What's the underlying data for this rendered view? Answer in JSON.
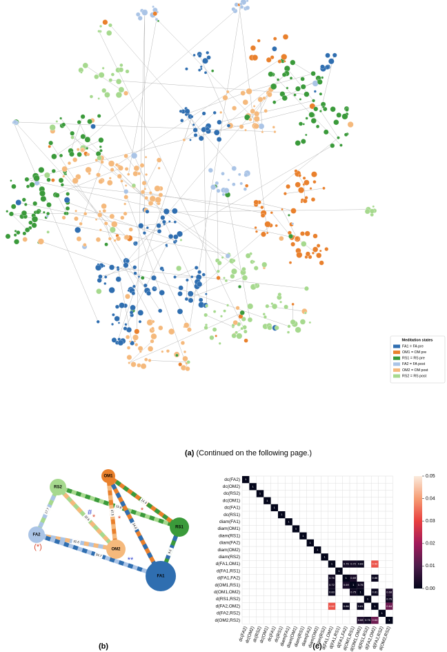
{
  "panel_a": {
    "caption_label": "(a)",
    "caption_text": "(Continued on the following page.)",
    "legend": {
      "title": "Meditation states",
      "entries": [
        {
          "label": "FA1 = FA pre",
          "color": "#2f6eb0"
        },
        {
          "label": "OM1 = OM pre",
          "color": "#e9802c"
        },
        {
          "label": "RS1 = RS pre",
          "color": "#3a9a3a"
        },
        {
          "label": "FA2 = FA post",
          "color": "#aac4e6"
        },
        {
          "label": "OM2 = OM post",
          "color": "#f5b97c"
        },
        {
          "label": "RS2 = RS post",
          "color": "#a6d98e"
        }
      ]
    }
  },
  "panel_b": {
    "caption": "(b)",
    "nodes": [
      "OM1",
      "RS2",
      "RS1",
      "FA2",
      "OM2",
      "FA1"
    ],
    "edges": [
      {
        "from": 1,
        "to": 3,
        "label": "17.7"
      },
      {
        "from": 3,
        "to": 4,
        "label": "32.6"
      },
      {
        "from": 3,
        "to": 5,
        "label": "34.7"
      },
      {
        "from": 1,
        "to": 4,
        "label": "32.6"
      },
      {
        "from": 1,
        "to": 2,
        "label": "15.8"
      },
      {
        "from": 0,
        "to": 4,
        "label": "37.5"
      },
      {
        "from": 0,
        "to": 5,
        "label": "34.8"
      },
      {
        "from": 0,
        "to": 2,
        "label": "14.3"
      },
      {
        "from": 2,
        "to": 5,
        "label": "9.6"
      }
    ],
    "annotations": [
      {
        "text": "*",
        "color": "#d9472b"
      },
      {
        "text": "#",
        "color": "#2a3fd0"
      },
      {
        "text": "*",
        "color": "#d9472b"
      },
      {
        "text": "*",
        "color": "#d9472b"
      },
      {
        "text": "(*)",
        "color": "#d9472b"
      },
      {
        "text": "**",
        "color": "#2a3fd0"
      }
    ]
  },
  "panel_c": {
    "caption": "(c)",
    "labels": [
      "dc(FA2)",
      "dc(OM2)",
      "dc(RS2)",
      "dc(OM1)",
      "dc(FA1)",
      "dc(RS1)",
      "diam(FA1)",
      "diam(OM1)",
      "diam(RS1)",
      "diam(FA2)",
      "diam(OM2)",
      "diam(RS2)",
      "d(FA1,OM1)",
      "d(FA1,RS1)",
      "d(FA1,FA2)",
      "d(OM1,RS1)",
      "d(OM1,OM2)",
      "d(RS1,RS2)",
      "d(FA2,OM2)",
      "d(FA2,RS2)",
      "d(OM2,RS2)"
    ],
    "cells": [
      {
        "row": 0,
        "col": 0,
        "value": 1,
        "p": 0
      },
      {
        "row": 1,
        "col": 1,
        "value": 1,
        "p": 0
      },
      {
        "row": 2,
        "col": 2,
        "value": 1,
        "p": 0
      },
      {
        "row": 3,
        "col": 3,
        "value": 1,
        "p": 0
      },
      {
        "row": 4,
        "col": 4,
        "value": 1,
        "p": 0
      },
      {
        "row": 5,
        "col": 5,
        "value": 1,
        "p": 0
      },
      {
        "row": 6,
        "col": 6,
        "value": 1,
        "p": 0
      },
      {
        "row": 7,
        "col": 7,
        "value": 1,
        "p": 0
      },
      {
        "row": 8,
        "col": 8,
        "value": 1,
        "p": 0
      },
      {
        "row": 9,
        "col": 9,
        "value": 1,
        "p": 0
      },
      {
        "row": 10,
        "col": 10,
        "value": 1,
        "p": 0
      },
      {
        "row": 11,
        "col": 11,
        "value": 1,
        "p": 0
      },
      {
        "row": 12,
        "col": 12,
        "value": 1,
        "p": 0
      },
      {
        "row": 13,
        "col": 13,
        "value": 1,
        "p": 0
      },
      {
        "row": 14,
        "col": 14,
        "value": 1,
        "p": 0
      },
      {
        "row": 15,
        "col": 15,
        "value": 1,
        "p": 0
      },
      {
        "row": 16,
        "col": 16,
        "value": 1,
        "p": 0
      },
      {
        "row": 17,
        "col": 17,
        "value": 1,
        "p": 0
      },
      {
        "row": 18,
        "col": 18,
        "value": 1,
        "p": 0
      },
      {
        "row": 19,
        "col": 19,
        "value": 1,
        "p": 0
      },
      {
        "row": 20,
        "col": 20,
        "value": 1,
        "p": 0
      },
      {
        "row": 12,
        "col": 14,
        "value": 0.76,
        "p": 0.002
      },
      {
        "row": 12,
        "col": 15,
        "value": 0.72,
        "p": 0.002
      },
      {
        "row": 12,
        "col": 16,
        "value": 0.83,
        "p": 0.001
      },
      {
        "row": 12,
        "col": 18,
        "value": 0.52,
        "p": 0.032
      },
      {
        "row": 14,
        "col": 12,
        "value": 0.76,
        "p": 0.002
      },
      {
        "row": 14,
        "col": 15,
        "value": 0.69,
        "p": 0.003
      },
      {
        "row": 14,
        "col": 18,
        "value": 0.86,
        "p": 0.001
      },
      {
        "row": 15,
        "col": 12,
        "value": 0.72,
        "p": 0.002
      },
      {
        "row": 15,
        "col": 14,
        "value": 0.69,
        "p": 0.003
      },
      {
        "row": 15,
        "col": 16,
        "value": 0.75,
        "p": 0.002
      },
      {
        "row": 16,
        "col": 12,
        "value": 0.83,
        "p": 0.001
      },
      {
        "row": 16,
        "col": 15,
        "value": 0.75,
        "p": 0.002
      },
      {
        "row": 16,
        "col": 18,
        "value": 0.81,
        "p": 0.001
      },
      {
        "row": 16,
        "col": 20,
        "value": 0.68,
        "p": 0.004
      },
      {
        "row": 17,
        "col": 20,
        "value": 0.76,
        "p": 0.002
      },
      {
        "row": 18,
        "col": 12,
        "value": 0.52,
        "p": 0.032
      },
      {
        "row": 18,
        "col": 14,
        "value": 0.86,
        "p": 0.001
      },
      {
        "row": 18,
        "col": 16,
        "value": 0.81,
        "p": 0.001
      },
      {
        "row": 18,
        "col": 20,
        "value": 0.64,
        "p": 0.014
      },
      {
        "row": 20,
        "col": 16,
        "value": 0.68,
        "p": 0.004
      },
      {
        "row": 20,
        "col": 17,
        "value": 0.76,
        "p": 0.002
      },
      {
        "row": 20,
        "col": 18,
        "value": 0.64,
        "p": 0.014
      }
    ],
    "colorbar": {
      "lim": [
        0,
        0.05
      ],
      "ticks": [
        {
          "value": 0,
          "label": "0.00"
        },
        {
          "value": 0.01,
          "label": "0.01"
        },
        {
          "value": 0.02,
          "label": "0.02"
        },
        {
          "value": 0.03,
          "label": "0.03"
        },
        {
          "value": 0.04,
          "label": "0.04"
        },
        {
          "value": 0.05,
          "label": "0.05"
        }
      ]
    }
  }
}
